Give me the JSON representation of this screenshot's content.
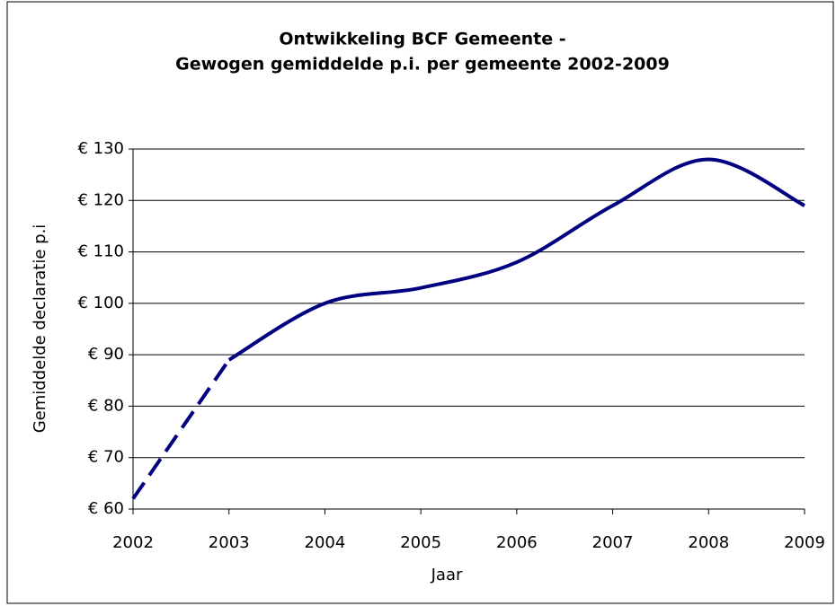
{
  "chart_data": {
    "type": "line",
    "title": [
      "Ontwikkeling BCF Gemeente -",
      "Gewogen gemiddelde p.i. per gemeente 2002-2009"
    ],
    "x_label": "Jaar",
    "y_label": "Gemiddelde declaratie p.i",
    "x": [
      2002,
      2003,
      2004,
      2005,
      2006,
      2007,
      2008,
      2009
    ],
    "series": [
      {
        "color": "#000080",
        "style": "dashed",
        "values": [
          62,
          89,
          null,
          null,
          null,
          null,
          null,
          null
        ]
      },
      {
        "color": "#000080",
        "style": "solid",
        "values": [
          null,
          89,
          100,
          103,
          108,
          119,
          128,
          119
        ]
      }
    ],
    "xlim": [
      2002,
      2009
    ],
    "xticks": [
      2002,
      2003,
      2004,
      2005,
      2006,
      2007,
      2008,
      2009
    ],
    "ylim": [
      60,
      130
    ],
    "yticks": [
      {
        "value": 60,
        "label": "€ 60"
      },
      {
        "value": 70,
        "label": "€ 70"
      },
      {
        "value": 80,
        "label": "€ 80"
      },
      {
        "value": 90,
        "label": "€ 90"
      },
      {
        "value": 100,
        "label": "€ 100"
      },
      {
        "value": 110,
        "label": "€ 110"
      },
      {
        "value": 120,
        "label": "€ 120"
      },
      {
        "value": 130,
        "label": "€ 130"
      }
    ],
    "grid": true
  }
}
